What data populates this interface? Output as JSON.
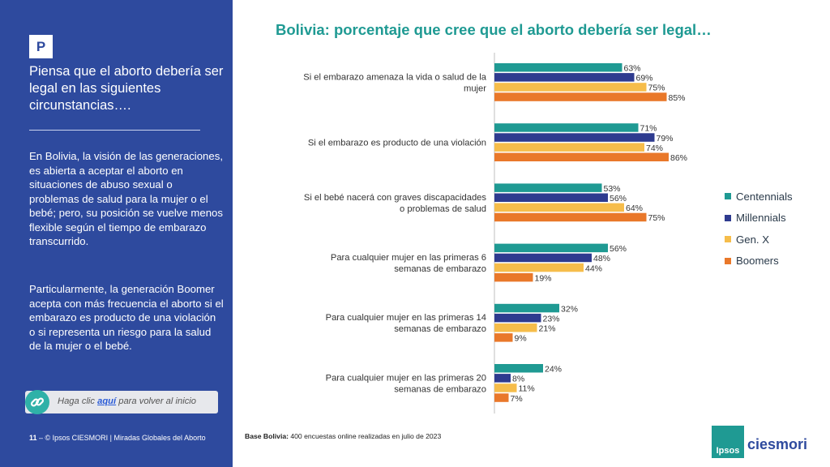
{
  "left_panel": {
    "badge": "P",
    "question": "Piensa que el aborto debería ser legal en las siguientes circunstancias….",
    "paragraph_1": "En Bolivia, la visión de las generaciones, es abierta a aceptar el aborto en situaciones de abuso sexual o problemas de salud para la mujer o el bebé; pero, su posición se vuelve menos flexible según el tiempo de embarazo transcurrido.",
    "paragraph_2": "Particularmente, la generación Boomer acepta con más frecuencia el aborto si el embarazo es producto de una violación o si representa un riesgo para la salud de la mujer o el bebé.",
    "link": {
      "pre": "Haga clic ",
      "link_word": "aquí",
      "post": " para volver al inicio",
      "icon": "link-icon"
    },
    "footer": {
      "page_number": "11",
      "separator": " – ",
      "text": "© Ipsos CIESMORI | Miradas Globales del Aborto"
    }
  },
  "base_note": {
    "label": "Base Bolivia:",
    "text": " 400 encuestas online realizadas en julio de 2023"
  },
  "logo": {
    "ipsos": "Ipsos",
    "ciesmori": "ciesmori"
  },
  "chart_data": {
    "type": "bar",
    "orientation": "horizontal",
    "title": "Bolivia: porcentaje que cree que el aborto debería ser legal…",
    "categories": [
      [
        "Si el embarazo amenaza la vida o salud de la",
        "mujer"
      ],
      [
        "Si el embarazo es producto de una violación"
      ],
      [
        "Si el bebé nacerá con graves discapacidades",
        "o problemas de salud"
      ],
      [
        "Para cualquier mujer en las primeras 6",
        "semanas de embarazo"
      ],
      [
        "Para cualquier mujer en las primeras 14",
        "semanas de embarazo"
      ],
      [
        "Para cualquier mujer en las primeras 20",
        "semanas de embarazo"
      ]
    ],
    "series": [
      {
        "name": "Centennials",
        "color": "#1f9a93",
        "values": [
          63,
          71,
          53,
          56,
          32,
          24
        ]
      },
      {
        "name": "Millennials",
        "color": "#2e3b8f",
        "values": [
          69,
          79,
          56,
          48,
          23,
          8
        ]
      },
      {
        "name": "Gen. X",
        "color": "#f6bd4b",
        "values": [
          75,
          74,
          64,
          44,
          21,
          11
        ]
      },
      {
        "name": "Boomers",
        "color": "#e9782a",
        "values": [
          85,
          86,
          75,
          19,
          9,
          7
        ]
      }
    ],
    "value_suffix": "%",
    "xlim": [
      0,
      100
    ],
    "legend_position": "right",
    "grid": false
  }
}
